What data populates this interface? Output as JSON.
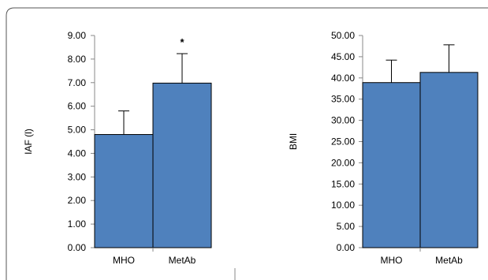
{
  "chart_data": [
    {
      "type": "bar",
      "categories": [
        "MHO",
        "MetAb"
      ],
      "values": [
        4.8,
        6.98
      ],
      "error_bars": [
        1.0,
        1.25
      ],
      "annotations": [
        {
          "category": "MetAb",
          "text": "*"
        }
      ],
      "xlabel": "",
      "ylabel": "IAF (l)",
      "ylim": [
        0,
        9
      ],
      "yticks": [
        "0.00",
        "1.00",
        "2.00",
        "3.00",
        "4.00",
        "5.00",
        "6.00",
        "7.00",
        "8.00",
        "9.00"
      ],
      "bar_color": "#4f81bd",
      "grid": false
    },
    {
      "type": "bar",
      "categories": [
        "MHO",
        "MetAb"
      ],
      "values": [
        38.9,
        41.3
      ],
      "error_bars": [
        5.3,
        6.5
      ],
      "annotations": [],
      "xlabel": "",
      "ylabel": "BMI",
      "ylim": [
        0,
        50
      ],
      "yticks": [
        "0.00",
        "5.00",
        "10.00",
        "15.00",
        "20.00",
        "25.00",
        "30.00",
        "35.00",
        "40.00",
        "45.00",
        "50.00"
      ],
      "bar_color": "#4f81bd",
      "grid": false
    }
  ]
}
